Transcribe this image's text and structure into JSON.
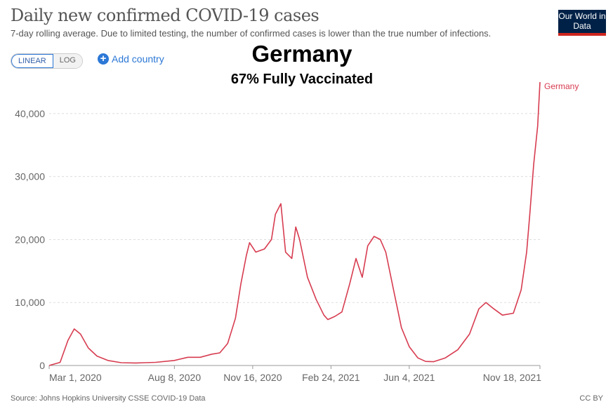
{
  "header": {
    "title": "Daily new confirmed COVID-19 cases",
    "subtitle": "7-day rolling average. Due to limited testing, the number of confirmed cases is lower than the true number of infections.",
    "logo": "Our World in Data"
  },
  "controls": {
    "linear": "LINEAR",
    "log": "LOG",
    "add_country": "Add country"
  },
  "overlay": {
    "country": "Germany",
    "vaccinated": "67% Fully Vaccinated"
  },
  "footer": {
    "source": "Source: Johns Hopkins University CSSE COVID-19 Data",
    "license": "CC BY"
  },
  "colors": {
    "line": "#d73c50",
    "logo_bg": "#002147",
    "accent": "#2c78d6"
  },
  "chart_data": {
    "type": "line",
    "title": "Daily new confirmed COVID-19 cases",
    "ylim": [
      0,
      45000
    ],
    "y_ticks": [
      "0",
      "10,000",
      "20,000",
      "30,000",
      "40,000"
    ],
    "y_tick_values": [
      0,
      10000,
      20000,
      30000,
      40000
    ],
    "x_ticks": [
      "Mar 1, 2020",
      "Aug 8, 2020",
      "Nov 16, 2020",
      "Feb 24, 2021",
      "Jun 4, 2021",
      "Nov 18, 2021"
    ],
    "x_tick_dates": [
      "2020-03-01",
      "2020-08-08",
      "2020-11-16",
      "2021-02-24",
      "2021-06-04",
      "2021-11-18"
    ],
    "xlim": [
      "2020-03-01",
      "2021-11-18"
    ],
    "grid": "horizontal dashed",
    "scale": "linear",
    "series": [
      {
        "name": "Germany",
        "points": [
          [
            "2020-03-01",
            0
          ],
          [
            "2020-03-15",
            500
          ],
          [
            "2020-03-25",
            4000
          ],
          [
            "2020-04-02",
            5800
          ],
          [
            "2020-04-10",
            5000
          ],
          [
            "2020-04-20",
            2800
          ],
          [
            "2020-05-01",
            1500
          ],
          [
            "2020-05-15",
            800
          ],
          [
            "2020-06-01",
            450
          ],
          [
            "2020-06-20",
            400
          ],
          [
            "2020-07-01",
            450
          ],
          [
            "2020-07-15",
            500
          ],
          [
            "2020-08-08",
            800
          ],
          [
            "2020-08-25",
            1300
          ],
          [
            "2020-09-10",
            1300
          ],
          [
            "2020-09-25",
            1800
          ],
          [
            "2020-10-05",
            2000
          ],
          [
            "2020-10-15",
            3500
          ],
          [
            "2020-10-25",
            7500
          ],
          [
            "2020-11-01",
            13000
          ],
          [
            "2020-11-08",
            17500
          ],
          [
            "2020-11-12",
            19500
          ],
          [
            "2020-11-20",
            18000
          ],
          [
            "2020-12-01",
            18500
          ],
          [
            "2020-12-10",
            20000
          ],
          [
            "2020-12-15",
            24000
          ],
          [
            "2020-12-22",
            25700
          ],
          [
            "2020-12-28",
            18000
          ],
          [
            "2021-01-05",
            17000
          ],
          [
            "2021-01-10",
            22000
          ],
          [
            "2021-01-15",
            20000
          ],
          [
            "2021-01-25",
            14000
          ],
          [
            "2021-02-05",
            10500
          ],
          [
            "2021-02-15",
            8000
          ],
          [
            "2021-02-20",
            7300
          ],
          [
            "2021-03-01",
            7800
          ],
          [
            "2021-03-10",
            8500
          ],
          [
            "2021-03-20",
            13000
          ],
          [
            "2021-03-28",
            17000
          ],
          [
            "2021-04-05",
            14000
          ],
          [
            "2021-04-12",
            19000
          ],
          [
            "2021-04-20",
            20500
          ],
          [
            "2021-04-28",
            20000
          ],
          [
            "2021-05-05",
            18000
          ],
          [
            "2021-05-15",
            12000
          ],
          [
            "2021-05-25",
            6000
          ],
          [
            "2021-06-04",
            3000
          ],
          [
            "2021-06-15",
            1200
          ],
          [
            "2021-06-25",
            650
          ],
          [
            "2021-07-05",
            600
          ],
          [
            "2021-07-20",
            1200
          ],
          [
            "2021-08-05",
            2500
          ],
          [
            "2021-08-20",
            5000
          ],
          [
            "2021-09-01",
            9000
          ],
          [
            "2021-09-10",
            10000
          ],
          [
            "2021-09-20",
            9000
          ],
          [
            "2021-10-01",
            8000
          ],
          [
            "2021-10-15",
            8300
          ],
          [
            "2021-10-25",
            12000
          ],
          [
            "2021-11-01",
            18000
          ],
          [
            "2021-11-05",
            24000
          ],
          [
            "2021-11-10",
            32000
          ],
          [
            "2021-11-15",
            38000
          ],
          [
            "2021-11-18",
            45000
          ]
        ]
      }
    ]
  }
}
